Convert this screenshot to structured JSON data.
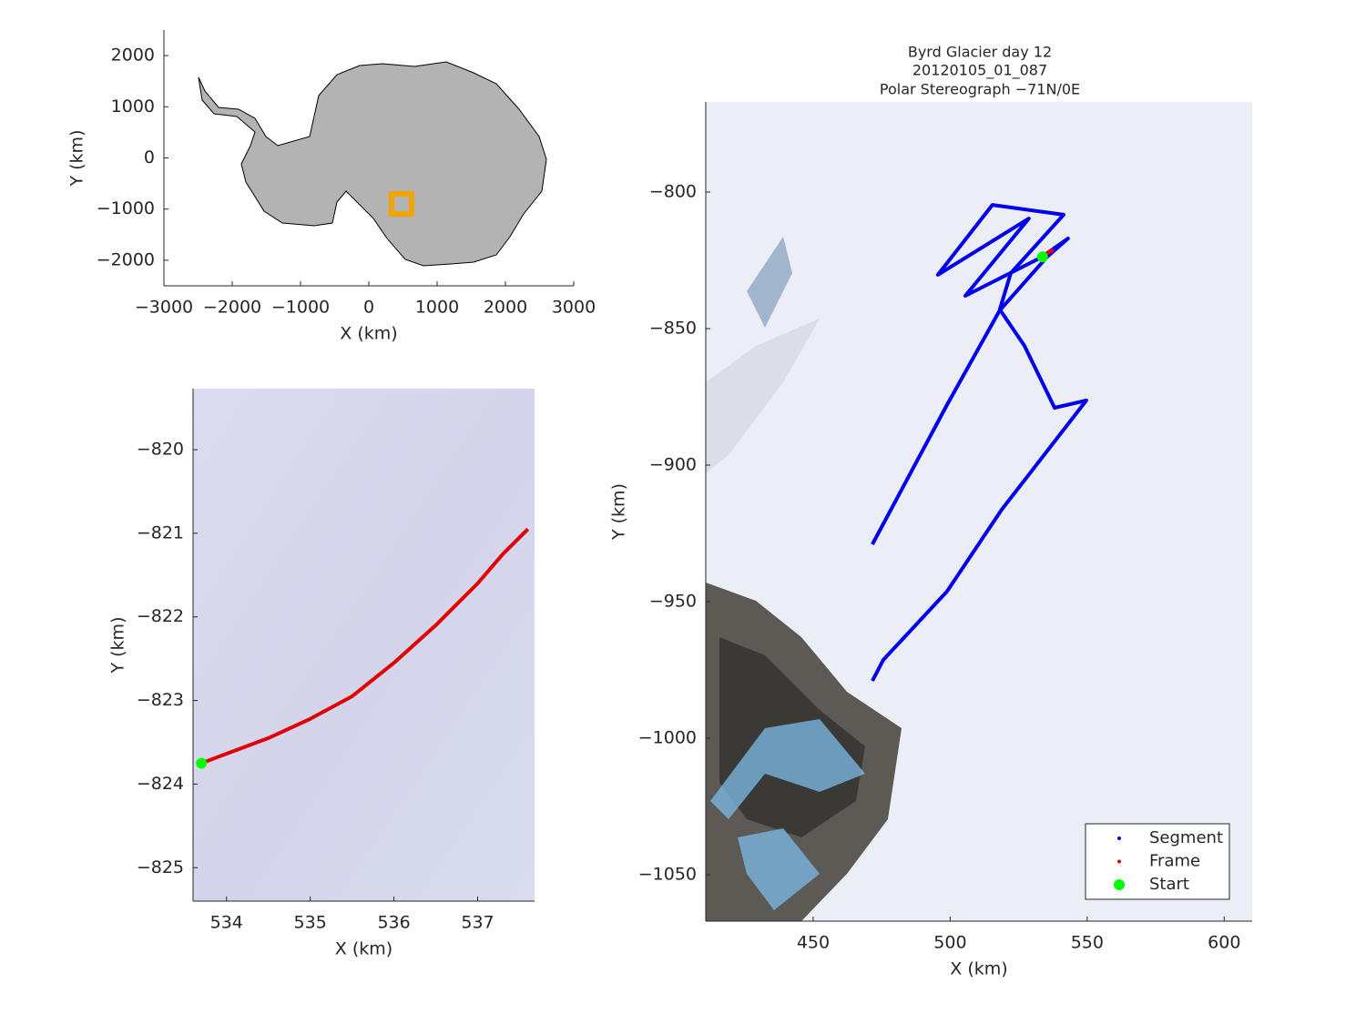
{
  "chart_data": [
    {
      "type": "map",
      "xlabel": "X (km)",
      "ylabel": "Y (km)",
      "xlim": [
        -3000,
        3000
      ],
      "ylim": [
        -2500,
        2500
      ],
      "xticks": [
        {
          "value": -3000,
          "label": "−3000"
        },
        {
          "value": -2000,
          "label": "−2000"
        },
        {
          "value": -1000,
          "label": "−1000"
        },
        0,
        1000,
        2000,
        3000
      ],
      "yticks": [
        {
          "value": -2000,
          "label": "−2000"
        },
        {
          "value": -1000,
          "label": "−1000"
        },
        0,
        1000,
        2000
      ],
      "series": [
        {
          "color": "#f0a500",
          "style": "square",
          "x": [
            480
          ],
          "y": [
            -900
          ]
        }
      ]
    },
    {
      "type": "map",
      "xlabel": "X (km)",
      "ylabel": "Y (km)",
      "xlim": [
        533.6,
        537.68
      ],
      "ylim": [
        -825.4,
        -819.27
      ],
      "xticks": [
        534,
        535,
        536,
        537
      ],
      "yticks": [
        {
          "value": -825,
          "label": "−825"
        },
        {
          "value": -824,
          "label": "−824"
        },
        {
          "value": -823,
          "label": "−823"
        },
        {
          "value": -822,
          "label": "−822"
        },
        {
          "value": -821,
          "label": "−821"
        },
        {
          "value": -820,
          "label": "−820"
        }
      ],
      "series": [
        {
          "color": "#e00000",
          "style": "line",
          "x": [
            533.7,
            534.5,
            535,
            535.5,
            536,
            536.5,
            537,
            537.3,
            537.6
          ],
          "y": [
            -823.75,
            -823.45,
            -823.22,
            -822.95,
            -822.55,
            -822.1,
            -821.6,
            -821.25,
            -820.95
          ]
        },
        {
          "color": "#00ff00",
          "style": "marker",
          "x": [
            533.7
          ],
          "y": [
            -823.75
          ]
        }
      ]
    },
    {
      "type": "map",
      "title": [
        "Byrd Glacier day 12",
        "20120105_01_087",
        "Polar Stereograph −71N/0E"
      ],
      "xlabel": "X (km)",
      "ylabel": "Y (km)",
      "xlim": [
        410.8,
        610.2
      ],
      "ylim": [
        -1067,
        -767
      ],
      "xticks": [
        450,
        500,
        550,
        600
      ],
      "yticks": [
        {
          "value": -1050,
          "label": "−1050"
        },
        {
          "value": -1000,
          "label": "−1000"
        },
        {
          "value": -950,
          "label": "−950"
        },
        {
          "value": -900,
          "label": "−900"
        },
        {
          "value": -850,
          "label": "−850"
        },
        {
          "value": -800,
          "label": "−800"
        }
      ],
      "legend": "lower right",
      "series": [
        {
          "name": "Segment",
          "color": "#0000ee",
          "style": "line",
          "x": [
            471.6,
            498.8,
            518.1,
            535.4,
            543.0,
            533.1,
            505.5,
            528.7,
            495.5,
            515.4,
            541.4,
            522.1,
            518.1,
            527.1,
            538.1,
            549.7,
            518.8,
            498.8,
            475.6,
            471.6
          ],
          "y": [
            -929,
            -878,
            -843.3,
            -823.7,
            -817,
            -824,
            -838,
            -809.7,
            -830.3,
            -804.7,
            -808.3,
            -829.7,
            -843,
            -856.3,
            -879,
            -876.3,
            -916.3,
            -946.3,
            -971.3,
            -979
          ]
        },
        {
          "name": "Frame",
          "color": "#e00000",
          "style": "line",
          "x": [
            533.7,
            537.6
          ],
          "y": [
            -823.75,
            -820.95
          ]
        },
        {
          "name": "Start",
          "color": "#00ff00",
          "style": "marker",
          "x": [
            533.7
          ],
          "y": [
            -823.75
          ]
        }
      ]
    }
  ]
}
